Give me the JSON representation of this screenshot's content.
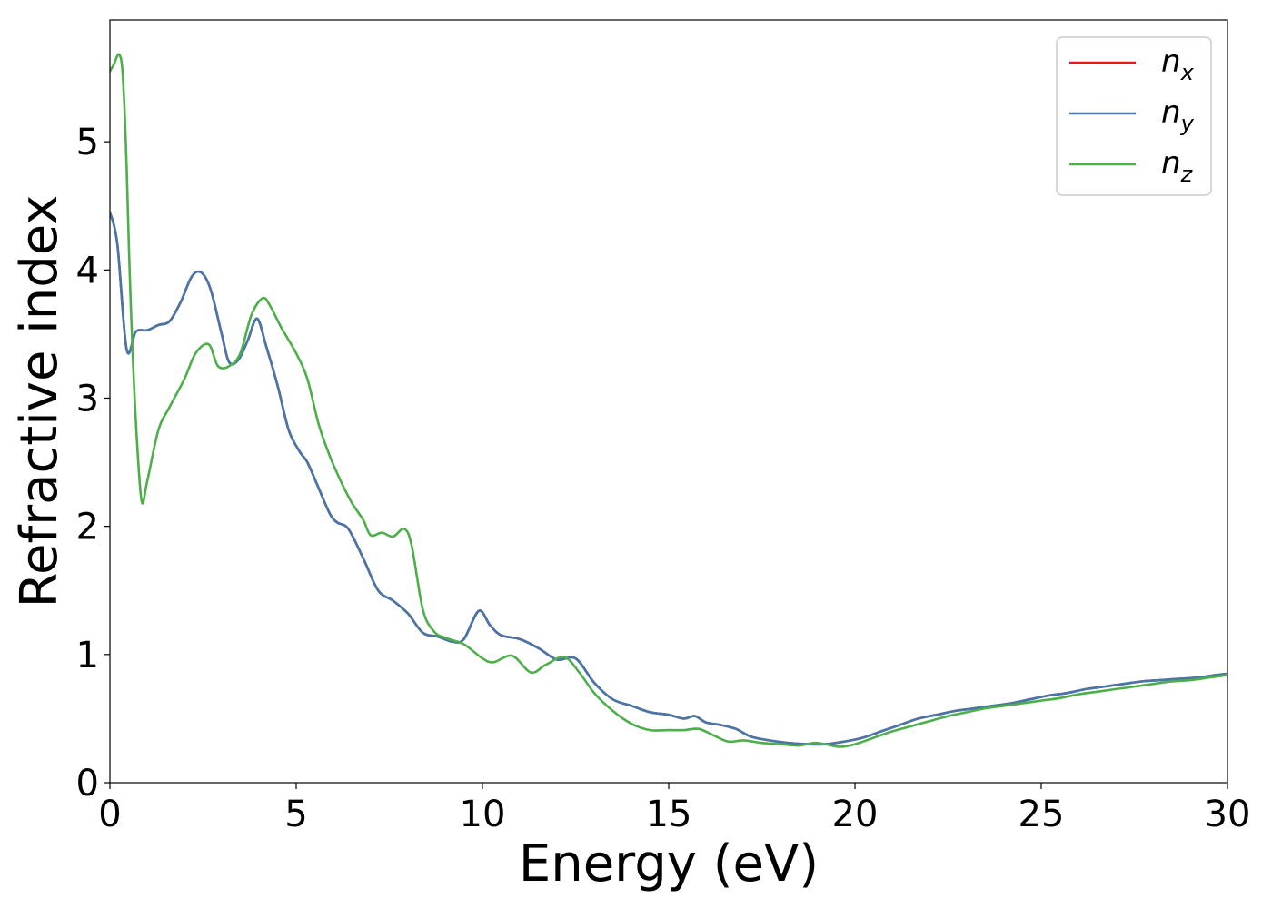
{
  "chart_data": {
    "type": "line",
    "xlabel": "Energy (eV)",
    "ylabel": "Refractive index",
    "xlim": [
      0,
      30
    ],
    "ylim": [
      0,
      5.95
    ],
    "xticks": [
      0,
      5,
      10,
      15,
      20,
      25,
      30
    ],
    "yticks": [
      0,
      1,
      2,
      3,
      4,
      5
    ],
    "xtick_labels": [
      "0",
      "5",
      "10",
      "15",
      "20",
      "25",
      "30"
    ],
    "ytick_labels": [
      "0",
      "1",
      "2",
      "3",
      "4",
      "5"
    ],
    "grid": false,
    "legend_position": "top-right",
    "series": [
      {
        "name": "n",
        "subscript": "x",
        "color": "#e41a1c",
        "x": [
          0,
          0.2,
          0.45,
          0.7,
          1.0,
          1.3,
          1.6,
          1.9,
          2.2,
          2.45,
          2.7,
          3.0,
          3.2,
          3.45,
          3.7,
          3.95,
          4.2,
          4.5,
          4.8,
          5.1,
          5.3,
          5.6,
          5.9,
          6.1,
          6.4,
          6.8,
          7.2,
          7.6,
          8.0,
          8.4,
          8.8,
          9.2,
          9.5,
          9.9,
          10.2,
          10.5,
          11.0,
          11.5,
          12.0,
          12.5,
          13.0,
          13.5,
          14.0,
          14.5,
          15.0,
          15.4,
          15.7,
          16.0,
          16.4,
          16.8,
          17.2,
          17.7,
          18.2,
          18.7,
          19.2,
          19.7,
          20.2,
          20.7,
          21.2,
          21.7,
          22.2,
          22.7,
          23.2,
          23.7,
          24.2,
          24.7,
          25.2,
          25.7,
          26.2,
          26.7,
          27.2,
          27.7,
          28.2,
          28.7,
          29.2,
          29.7,
          30.0
        ],
        "y": [
          4.45,
          4.2,
          3.38,
          3.52,
          3.53,
          3.57,
          3.6,
          3.75,
          3.95,
          3.98,
          3.85,
          3.5,
          3.28,
          3.3,
          3.45,
          3.62,
          3.4,
          3.1,
          2.75,
          2.58,
          2.5,
          2.3,
          2.1,
          2.03,
          1.98,
          1.75,
          1.5,
          1.42,
          1.32,
          1.17,
          1.14,
          1.1,
          1.12,
          1.34,
          1.23,
          1.15,
          1.12,
          1.05,
          0.96,
          0.97,
          0.78,
          0.65,
          0.6,
          0.55,
          0.53,
          0.5,
          0.52,
          0.47,
          0.45,
          0.42,
          0.36,
          0.33,
          0.31,
          0.3,
          0.3,
          0.32,
          0.35,
          0.4,
          0.45,
          0.5,
          0.53,
          0.56,
          0.58,
          0.6,
          0.62,
          0.65,
          0.68,
          0.7,
          0.73,
          0.75,
          0.77,
          0.79,
          0.8,
          0.81,
          0.82,
          0.84,
          0.85
        ]
      },
      {
        "name": "n",
        "subscript": "y",
        "color": "#4477aa",
        "x": [
          0,
          0.2,
          0.45,
          0.7,
          1.0,
          1.3,
          1.6,
          1.9,
          2.2,
          2.45,
          2.7,
          3.0,
          3.2,
          3.45,
          3.7,
          3.95,
          4.2,
          4.5,
          4.8,
          5.1,
          5.3,
          5.6,
          5.9,
          6.1,
          6.4,
          6.8,
          7.2,
          7.6,
          8.0,
          8.4,
          8.8,
          9.2,
          9.5,
          9.9,
          10.2,
          10.5,
          11.0,
          11.5,
          12.0,
          12.5,
          13.0,
          13.5,
          14.0,
          14.5,
          15.0,
          15.4,
          15.7,
          16.0,
          16.4,
          16.8,
          17.2,
          17.7,
          18.2,
          18.7,
          19.2,
          19.7,
          20.2,
          20.7,
          21.2,
          21.7,
          22.2,
          22.7,
          23.2,
          23.7,
          24.2,
          24.7,
          25.2,
          25.7,
          26.2,
          26.7,
          27.2,
          27.7,
          28.2,
          28.7,
          29.2,
          29.7,
          30.0
        ],
        "y": [
          4.45,
          4.2,
          3.38,
          3.52,
          3.53,
          3.57,
          3.6,
          3.75,
          3.95,
          3.98,
          3.85,
          3.5,
          3.28,
          3.3,
          3.45,
          3.62,
          3.4,
          3.1,
          2.75,
          2.58,
          2.5,
          2.3,
          2.1,
          2.03,
          1.98,
          1.75,
          1.5,
          1.42,
          1.32,
          1.17,
          1.14,
          1.1,
          1.12,
          1.34,
          1.23,
          1.15,
          1.12,
          1.05,
          0.96,
          0.97,
          0.78,
          0.65,
          0.6,
          0.55,
          0.53,
          0.5,
          0.52,
          0.47,
          0.45,
          0.42,
          0.36,
          0.33,
          0.31,
          0.3,
          0.3,
          0.32,
          0.35,
          0.4,
          0.45,
          0.5,
          0.53,
          0.56,
          0.58,
          0.6,
          0.62,
          0.65,
          0.68,
          0.7,
          0.73,
          0.75,
          0.77,
          0.79,
          0.8,
          0.81,
          0.82,
          0.84,
          0.85
        ]
      },
      {
        "name": "n",
        "subscript": "z",
        "color": "#4daf4a",
        "x": [
          0,
          0.1,
          0.25,
          0.35,
          0.45,
          0.55,
          0.7,
          0.85,
          1.0,
          1.3,
          1.6,
          2.0,
          2.3,
          2.65,
          2.9,
          3.2,
          3.5,
          3.8,
          4.1,
          4.3,
          4.6,
          5.0,
          5.3,
          5.6,
          5.9,
          6.2,
          6.5,
          6.8,
          7.0,
          7.3,
          7.6,
          7.9,
          8.1,
          8.4,
          8.7,
          9.0,
          9.5,
          10.0,
          10.3,
          10.8,
          11.3,
          11.7,
          12.2,
          12.6,
          13.0,
          13.5,
          14.0,
          14.5,
          15.0,
          15.4,
          15.8,
          16.2,
          16.6,
          17.0,
          17.5,
          18.0,
          18.5,
          18.9,
          19.2,
          19.6,
          20.0,
          20.5,
          21.0,
          21.5,
          22.0,
          22.5,
          23.0,
          23.5,
          24.0,
          24.5,
          25.0,
          25.5,
          26.0,
          26.5,
          27.0,
          27.5,
          28.0,
          28.5,
          29.0,
          29.5,
          30.0
        ],
        "y": [
          5.55,
          5.6,
          5.68,
          5.5,
          4.8,
          3.8,
          2.8,
          2.2,
          2.35,
          2.75,
          2.93,
          3.15,
          3.35,
          3.42,
          3.25,
          3.25,
          3.35,
          3.65,
          3.78,
          3.72,
          3.55,
          3.35,
          3.15,
          2.8,
          2.55,
          2.35,
          2.18,
          2.05,
          1.93,
          1.95,
          1.92,
          1.98,
          1.85,
          1.35,
          1.18,
          1.13,
          1.08,
          0.97,
          0.94,
          0.99,
          0.86,
          0.92,
          0.98,
          0.86,
          0.7,
          0.56,
          0.46,
          0.41,
          0.41,
          0.41,
          0.42,
          0.37,
          0.32,
          0.33,
          0.31,
          0.3,
          0.29,
          0.31,
          0.3,
          0.28,
          0.3,
          0.35,
          0.4,
          0.44,
          0.48,
          0.52,
          0.55,
          0.58,
          0.6,
          0.62,
          0.64,
          0.66,
          0.69,
          0.71,
          0.73,
          0.75,
          0.77,
          0.79,
          0.8,
          0.82,
          0.84
        ]
      }
    ]
  }
}
